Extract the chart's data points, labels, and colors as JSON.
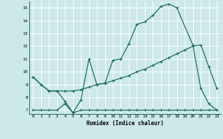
{
  "xlabel": "Humidex (Indice chaleur)",
  "xlim": [
    -0.5,
    23.5
  ],
  "ylim": [
    6.7,
    15.5
  ],
  "yticks": [
    7,
    8,
    9,
    10,
    11,
    12,
    13,
    14,
    15
  ],
  "xticks": [
    0,
    1,
    2,
    3,
    4,
    5,
    6,
    7,
    8,
    9,
    10,
    11,
    12,
    13,
    14,
    15,
    16,
    17,
    18,
    19,
    20,
    21,
    22,
    23
  ],
  "bg_color": "#cce8e8",
  "grid_color": "#ffffff",
  "line_color": "#1a6b5a",
  "line1_x": [
    0,
    1,
    2,
    3,
    4,
    5,
    6,
    7,
    8,
    9,
    10,
    11,
    12,
    13,
    14,
    15,
    16,
    17,
    18,
    20,
    21,
    22,
    23
  ],
  "line1_y": [
    9.6,
    9.0,
    8.5,
    8.5,
    7.7,
    6.8,
    7.8,
    11.0,
    9.0,
    9.1,
    10.9,
    11.0,
    12.2,
    13.7,
    13.9,
    14.4,
    15.1,
    15.3,
    15.0,
    12.1,
    8.7,
    7.5,
    7.0
  ],
  "line2_x": [
    0,
    1,
    2,
    3,
    4,
    5,
    6,
    7,
    8,
    9,
    10,
    11,
    12,
    13,
    14,
    15,
    16,
    17,
    18,
    19,
    20,
    21,
    22,
    23
  ],
  "line2_y": [
    9.6,
    9.0,
    8.5,
    8.5,
    8.5,
    8.5,
    8.6,
    8.8,
    9.0,
    9.1,
    9.3,
    9.5,
    9.7,
    10.0,
    10.2,
    10.5,
    10.8,
    11.1,
    11.4,
    11.7,
    12.0,
    12.1,
    10.4,
    8.7
  ],
  "line3_x": [
    0,
    1,
    2,
    3,
    4,
    5,
    6,
    7,
    8,
    9,
    10,
    11,
    12,
    13,
    14,
    15,
    16,
    17,
    18,
    19,
    20,
    21,
    22,
    23
  ],
  "line3_y": [
    7.0,
    7.0,
    7.0,
    7.0,
    7.5,
    6.8,
    7.0,
    7.0,
    7.0,
    7.0,
    7.0,
    7.0,
    7.0,
    7.0,
    7.0,
    7.0,
    7.0,
    7.0,
    7.0,
    7.0,
    7.0,
    7.0,
    7.0,
    7.0
  ]
}
